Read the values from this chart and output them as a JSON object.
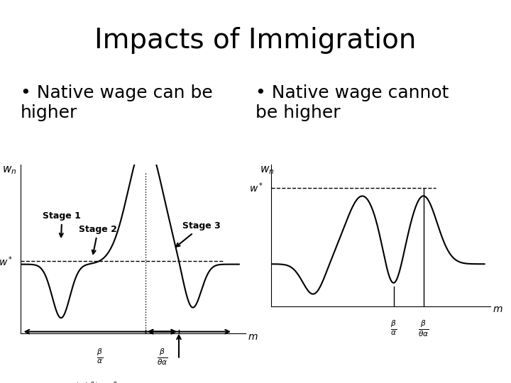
{
  "title": "Impacts of Immigration",
  "title_fontsize": 28,
  "bullet1": "Native wage can be\nhigher",
  "bullet2": "Native wage cannot\nbe higher",
  "bullet_fontsize": 18,
  "background_color": "#ffffff",
  "curve_color": "#000000",
  "arrow_color": "#000000",
  "dashed_color": "#000000",
  "stage1_label": "Stage 1",
  "stage2_label": "Stage 2",
  "stage3_label": "Stage 3",
  "wn_label": "wₙ",
  "wstar_label": "w*",
  "m_label": "m",
  "beta_alpha_label": "$\\frac{\\beta}{\\alpha}$",
  "beta_theta_alpha_label": "$\\frac{\\beta}{\\theta\\alpha}$",
  "formula_label": "$\\left(\\frac{\\alpha+\\beta}{\\alpha}\\right)^{\\frac{-\\alpha}{\\theta}} \\frac{\\beta}{\\alpha+\\beta}$"
}
